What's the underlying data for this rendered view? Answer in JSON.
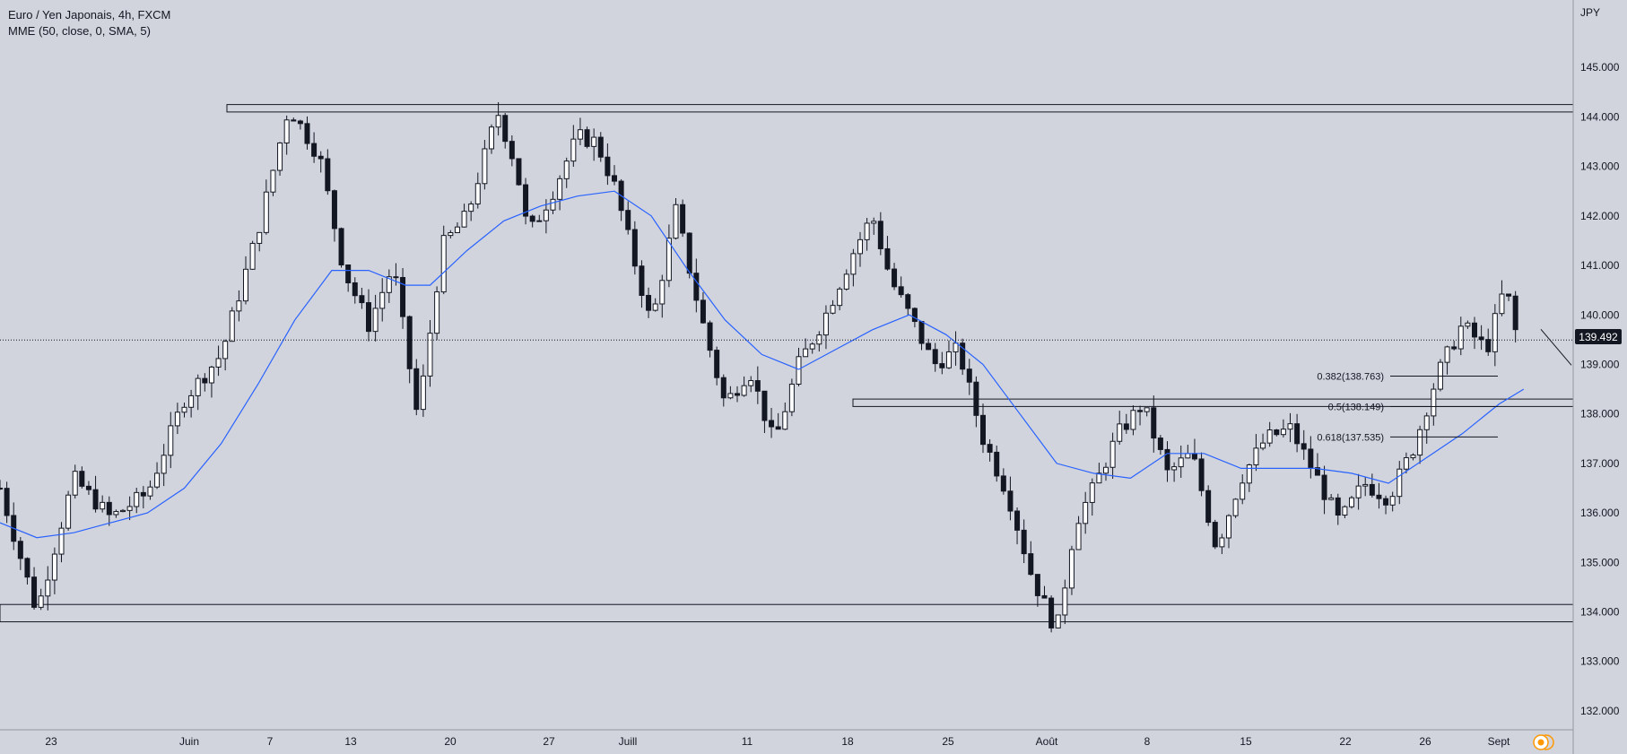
{
  "header": {
    "symbol": "Euro / Yen Japonais, 4h, FXCM",
    "indicator": "MME (50, close, 0, SMA, 5)"
  },
  "chart_data": {
    "type": "candlestick",
    "title": "Euro / Yen Japonais, 4h, FXCM",
    "currency_label": "JPY",
    "ylim": [
      131.6,
      146.0
    ],
    "y_ticks": [
      "132.000",
      "133.000",
      "134.000",
      "135.000",
      "136.000",
      "137.000",
      "138.000",
      "139.000",
      "140.000",
      "141.000",
      "142.000",
      "143.000",
      "144.000",
      "145.000"
    ],
    "x_ticks": [
      "23",
      "Juin",
      "7",
      "13",
      "20",
      "27",
      "Juill",
      "11",
      "18",
      "25",
      "Août",
      "8",
      "15",
      "22",
      "26",
      "Sept"
    ],
    "last_price": "139.492",
    "price_path": [
      [
        0,
        136.5
      ],
      [
        3,
        134.0
      ],
      [
        6,
        136.7
      ],
      [
        9,
        135.9
      ],
      [
        12,
        136.4
      ],
      [
        15,
        138.3
      ],
      [
        18,
        139.2
      ],
      [
        21,
        141.7
      ],
      [
        23.5,
        144.2
      ],
      [
        26,
        143.2
      ],
      [
        28,
        140.9
      ],
      [
        30,
        139.8
      ],
      [
        32,
        141.0
      ],
      [
        34,
        137.9
      ],
      [
        36,
        141.4
      ],
      [
        38,
        142.0
      ],
      [
        40.5,
        144.1
      ],
      [
        42,
        143.0
      ],
      [
        43,
        141.6
      ],
      [
        45,
        142.5
      ],
      [
        47,
        143.6
      ],
      [
        48.5,
        143.5
      ],
      [
        50,
        142.6
      ],
      [
        53,
        139.8
      ],
      [
        55,
        142.1
      ],
      [
        57,
        140.0
      ],
      [
        59,
        138.2
      ],
      [
        61,
        138.9
      ],
      [
        63,
        137.4
      ],
      [
        65,
        139.0
      ],
      [
        67,
        139.9
      ],
      [
        69.5,
        141.3
      ],
      [
        71,
        142.0
      ],
      [
        72.5,
        140.7
      ],
      [
        74,
        140.0
      ],
      [
        76,
        139.0
      ],
      [
        78,
        139.3
      ],
      [
        80,
        137.5
      ],
      [
        82,
        136.4
      ],
      [
        84,
        134.7
      ],
      [
        86,
        133.6
      ],
      [
        87.5,
        135.8
      ],
      [
        89,
        136.5
      ],
      [
        91,
        137.6
      ],
      [
        93,
        138.2
      ],
      [
        95,
        136.8
      ],
      [
        97,
        137.2
      ],
      [
        99,
        135.3
      ],
      [
        101,
        136.7
      ],
      [
        103,
        137.5
      ],
      [
        105,
        137.7
      ],
      [
        107,
        136.8
      ],
      [
        109,
        135.8
      ],
      [
        111,
        136.6
      ],
      [
        113,
        136.3
      ],
      [
        115,
        137.3
      ],
      [
        117,
        138.8
      ],
      [
        119,
        139.8
      ],
      [
        121,
        139.3
      ],
      [
        122.5,
        140.6
      ],
      [
        123.5,
        139.49
      ]
    ],
    "moving_average": {
      "name": "MME (50, close, 0, SMA, 5)",
      "color": "#2962ff",
      "points": [
        [
          0,
          135.8
        ],
        [
          3,
          135.5
        ],
        [
          6,
          135.6
        ],
        [
          9,
          135.8
        ],
        [
          12,
          136.0
        ],
        [
          15,
          136.5
        ],
        [
          18,
          137.4
        ],
        [
          21,
          138.6
        ],
        [
          24,
          139.9
        ],
        [
          27,
          140.9
        ],
        [
          30,
          140.9
        ],
        [
          33,
          140.6
        ],
        [
          35,
          140.6
        ],
        [
          38,
          141.3
        ],
        [
          41,
          141.9
        ],
        [
          44,
          142.2
        ],
        [
          47,
          142.4
        ],
        [
          50,
          142.5
        ],
        [
          53,
          142.0
        ],
        [
          56,
          140.9
        ],
        [
          59,
          139.9
        ],
        [
          62,
          139.2
        ],
        [
          65,
          138.9
        ],
        [
          68,
          139.3
        ],
        [
          71,
          139.7
        ],
        [
          74,
          140.0
        ],
        [
          77,
          139.6
        ],
        [
          80,
          139.0
        ],
        [
          83,
          138.0
        ],
        [
          86,
          137.0
        ],
        [
          89,
          136.8
        ],
        [
          92,
          136.7
        ],
        [
          95,
          137.2
        ],
        [
          98,
          137.2
        ],
        [
          101,
          136.9
        ],
        [
          104,
          136.9
        ],
        [
          107,
          136.9
        ],
        [
          110,
          136.8
        ],
        [
          113,
          136.6
        ],
        [
          116,
          137.1
        ],
        [
          119,
          137.6
        ],
        [
          122,
          138.2
        ],
        [
          124,
          138.5
        ]
      ]
    },
    "zones": [
      {
        "top": 144.25,
        "bottom": 144.1
      },
      {
        "top": 138.3,
        "bottom": 138.15
      },
      {
        "top": 134.15,
        "bottom": 133.8
      }
    ],
    "fibonacci": [
      {
        "label": "0.382(138.763)",
        "value": 138.763
      },
      {
        "label": "0.5(138.149)",
        "value": 138.149
      },
      {
        "label": "0.618(137.535)",
        "value": 137.535
      }
    ]
  }
}
